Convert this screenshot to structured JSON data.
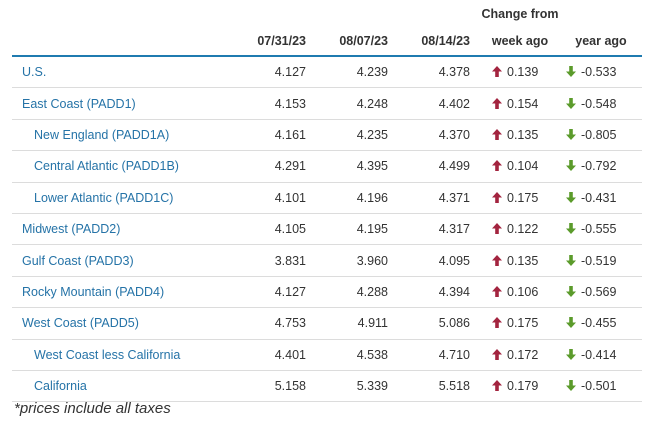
{
  "header": {
    "date1": "07/31/23",
    "date2": "08/07/23",
    "date3": "08/14/23",
    "change_from": "Change from",
    "week_ago": "week ago",
    "year_ago": "year ago"
  },
  "colors": {
    "up": "#a3243f",
    "down": "#5b9b2b",
    "link": "#2573a7",
    "rule": "#1f7bb0"
  },
  "rows": [
    {
      "region": "U.S.",
      "sub": false,
      "d1": "4.127",
      "d2": "4.239",
      "d3": "4.378",
      "week_change": "0.139",
      "week_dir": "up",
      "year_change": "-0.533",
      "year_dir": "down"
    },
    {
      "region": "East Coast (PADD1)",
      "sub": false,
      "d1": "4.153",
      "d2": "4.248",
      "d3": "4.402",
      "week_change": "0.154",
      "week_dir": "up",
      "year_change": "-0.548",
      "year_dir": "down"
    },
    {
      "region": "New England (PADD1A)",
      "sub": true,
      "d1": "4.161",
      "d2": "4.235",
      "d3": "4.370",
      "week_change": "0.135",
      "week_dir": "up",
      "year_change": "-0.805",
      "year_dir": "down"
    },
    {
      "region": "Central Atlantic (PADD1B)",
      "sub": true,
      "d1": "4.291",
      "d2": "4.395",
      "d3": "4.499",
      "week_change": "0.104",
      "week_dir": "up",
      "year_change": "-0.792",
      "year_dir": "down"
    },
    {
      "region": "Lower Atlantic (PADD1C)",
      "sub": true,
      "d1": "4.101",
      "d2": "4.196",
      "d3": "4.371",
      "week_change": "0.175",
      "week_dir": "up",
      "year_change": "-0.431",
      "year_dir": "down"
    },
    {
      "region": "Midwest (PADD2)",
      "sub": false,
      "d1": "4.105",
      "d2": "4.195",
      "d3": "4.317",
      "week_change": "0.122",
      "week_dir": "up",
      "year_change": "-0.555",
      "year_dir": "down"
    },
    {
      "region": "Gulf Coast (PADD3)",
      "sub": false,
      "d1": "3.831",
      "d2": "3.960",
      "d3": "4.095",
      "week_change": "0.135",
      "week_dir": "up",
      "year_change": "-0.519",
      "year_dir": "down"
    },
    {
      "region": "Rocky Mountain (PADD4)",
      "sub": false,
      "d1": "4.127",
      "d2": "4.288",
      "d3": "4.394",
      "week_change": "0.106",
      "week_dir": "up",
      "year_change": "-0.569",
      "year_dir": "down"
    },
    {
      "region": "West Coast (PADD5)",
      "sub": false,
      "d1": "4.753",
      "d2": "4.911",
      "d3": "5.086",
      "week_change": "0.175",
      "week_dir": "up",
      "year_change": "-0.455",
      "year_dir": "down"
    },
    {
      "region": "West Coast less California",
      "sub": true,
      "d1": "4.401",
      "d2": "4.538",
      "d3": "4.710",
      "week_change": "0.172",
      "week_dir": "up",
      "year_change": "-0.414",
      "year_dir": "down"
    },
    {
      "region": "California",
      "sub": true,
      "d1": "5.158",
      "d2": "5.339",
      "d3": "5.518",
      "week_change": "0.179",
      "week_dir": "up",
      "year_change": "-0.501",
      "year_dir": "down"
    }
  ],
  "footnote": "*prices include all taxes"
}
